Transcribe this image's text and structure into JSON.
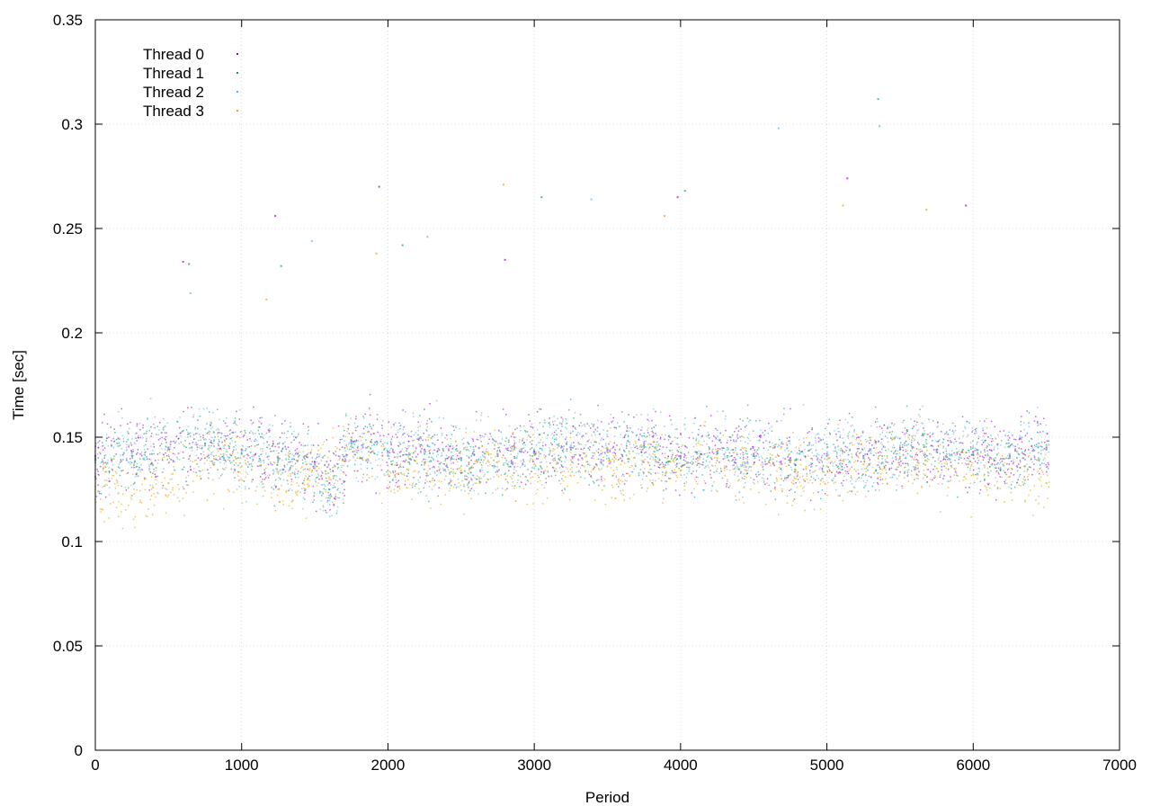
{
  "chart_data": {
    "type": "scatter",
    "title": "",
    "xlabel": "Period",
    "ylabel": "Time [sec]",
    "xlim": [
      0,
      7000
    ],
    "ylim": [
      0,
      0.35
    ],
    "xticks": [
      0,
      1000,
      2000,
      3000,
      4000,
      5000,
      6000,
      7000
    ],
    "yticks": [
      0,
      0.05,
      0.1,
      0.15,
      0.2,
      0.25,
      0.3,
      0.35
    ],
    "xtick_labels": [
      "0",
      "1000",
      "2000",
      "3000",
      "4000",
      "5000",
      "6000",
      "7000"
    ],
    "ytick_labels": [
      "0",
      "0.05",
      "0.1",
      "0.15",
      "0.2",
      "0.25",
      "0.3",
      "0.35"
    ],
    "grid": true,
    "legend_position": "top-left",
    "series": [
      {
        "name": "Thread 0",
        "color": "#9400d3",
        "x": [
          0,
          250,
          500,
          750,
          1000,
          1250,
          1500,
          1600,
          1750,
          2000,
          2250,
          2500,
          2750,
          3000,
          3250,
          3500,
          3750,
          4000,
          4250,
          4500,
          4750,
          5000,
          5250,
          5500,
          5750,
          6000,
          6250,
          6500
        ],
        "y": [
          0.141,
          0.143,
          0.145,
          0.147,
          0.144,
          0.14,
          0.138,
          0.128,
          0.148,
          0.143,
          0.144,
          0.14,
          0.142,
          0.143,
          0.145,
          0.144,
          0.146,
          0.141,
          0.143,
          0.142,
          0.14,
          0.142,
          0.141,
          0.145,
          0.144,
          0.143,
          0.141,
          0.145
        ]
      },
      {
        "name": "Thread 1",
        "color": "#009e73",
        "x": [
          0,
          250,
          500,
          750,
          1000,
          1250,
          1500,
          1600,
          1750,
          2000,
          2250,
          2500,
          2750,
          3000,
          3250,
          3500,
          3750,
          4000,
          4250,
          4500,
          4750,
          5000,
          5250,
          5500,
          5750,
          6000,
          6250,
          6500
        ],
        "y": [
          0.139,
          0.141,
          0.144,
          0.146,
          0.142,
          0.139,
          0.137,
          0.125,
          0.147,
          0.141,
          0.142,
          0.139,
          0.141,
          0.142,
          0.144,
          0.143,
          0.145,
          0.14,
          0.142,
          0.141,
          0.139,
          0.141,
          0.14,
          0.144,
          0.143,
          0.142,
          0.14,
          0.144
        ]
      },
      {
        "name": "Thread 2",
        "color": "#56b4e9",
        "x": [
          0,
          250,
          500,
          750,
          1000,
          1250,
          1500,
          1600,
          1750,
          2000,
          2250,
          2500,
          2750,
          3000,
          3250,
          3500,
          3750,
          4000,
          4250,
          4500,
          4750,
          5000,
          5250,
          5500,
          5750,
          6000,
          6250,
          6500
        ],
        "y": [
          0.14,
          0.142,
          0.145,
          0.147,
          0.143,
          0.14,
          0.136,
          0.122,
          0.146,
          0.142,
          0.143,
          0.14,
          0.142,
          0.144,
          0.146,
          0.145,
          0.147,
          0.14,
          0.143,
          0.141,
          0.138,
          0.142,
          0.14,
          0.146,
          0.148,
          0.145,
          0.142,
          0.146
        ]
      },
      {
        "name": "Thread 3",
        "color": "#e69f00",
        "x": [
          0,
          250,
          500,
          750,
          1000,
          1250,
          1500,
          1600,
          1750,
          2000,
          2250,
          2500,
          2750,
          3000,
          3250,
          3500,
          3750,
          4000,
          4250,
          4500,
          4750,
          5000,
          5250,
          5500,
          5750,
          6000,
          6250,
          6500
        ],
        "y": [
          0.131,
          0.122,
          0.128,
          0.14,
          0.136,
          0.125,
          0.135,
          0.13,
          0.15,
          0.132,
          0.138,
          0.134,
          0.138,
          0.137,
          0.139,
          0.136,
          0.138,
          0.134,
          0.14,
          0.137,
          0.132,
          0.136,
          0.137,
          0.14,
          0.135,
          0.132,
          0.131,
          0.128
        ]
      }
    ],
    "outliers": {
      "x": [
        600,
        640,
        650,
        1170,
        1230,
        1270,
        1480,
        1920,
        1940,
        2100,
        2270,
        2790,
        2800,
        3050,
        3390,
        3890,
        3980,
        4030,
        4670,
        5110,
        5140,
        5350,
        5360,
        5680,
        5950
      ],
      "y": [
        0.234,
        0.233,
        0.219,
        0.216,
        0.256,
        0.232,
        0.244,
        0.238,
        0.27,
        0.242,
        0.246,
        0.271,
        0.235,
        0.265,
        0.264,
        0.256,
        0.265,
        0.268,
        0.298,
        0.261,
        0.274,
        0.312,
        0.299,
        0.259,
        0.261
      ]
    }
  }
}
